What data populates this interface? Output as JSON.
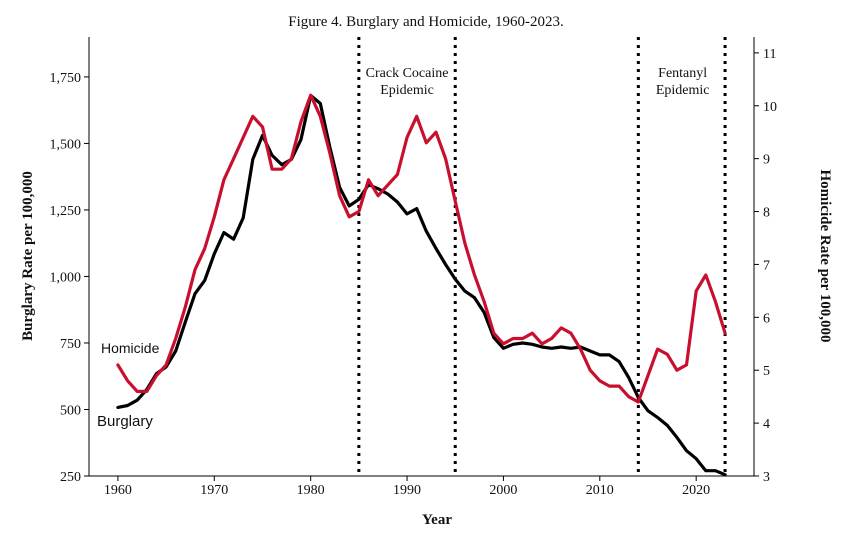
{
  "chart_data": {
    "type": "line",
    "title": "Figure 4. Burglary and Homicide, 1960-2023.",
    "xlabel": "Year",
    "ylabel_left": "Burglary Rate per 100,000",
    "ylabel_right": "Homicide Rate per 100,000",
    "xlim": [
      1957,
      2026
    ],
    "ylim_left": [
      250,
      1900
    ],
    "ylim_right": [
      3,
      11.3
    ],
    "x_ticks": [
      1960,
      1970,
      1980,
      1990,
      2000,
      2010,
      2020
    ],
    "y_ticks_left": [
      250,
      500,
      750,
      1000,
      1250,
      1500,
      1750
    ],
    "y_tick_labels_left": [
      "250",
      "500",
      "750",
      "1,000",
      "1,250",
      "1,500",
      "1,750"
    ],
    "y_ticks_right": [
      3,
      4,
      5,
      6,
      7,
      8,
      9,
      10,
      11
    ],
    "grid": false,
    "vlines": [
      1985,
      1995,
      2014,
      2023
    ],
    "annotations": [
      {
        "text": [
          "Crack Cocaine",
          "Epidemic"
        ],
        "x": 1990
      },
      {
        "text": [
          "Fentanyl",
          "Epidemic"
        ],
        "x": 2018.6
      }
    ],
    "series": [
      {
        "name": "Burglary",
        "axis": "left",
        "color": "#000000",
        "x": [
          1960,
          1961,
          1962,
          1963,
          1964,
          1965,
          1966,
          1967,
          1968,
          1969,
          1970,
          1971,
          1972,
          1973,
          1974,
          1975,
          1976,
          1977,
          1978,
          1979,
          1980,
          1981,
          1982,
          1983,
          1984,
          1985,
          1986,
          1987,
          1988,
          1989,
          1990,
          1991,
          1992,
          1993,
          1994,
          1995,
          1996,
          1997,
          1998,
          1999,
          2000,
          2001,
          2002,
          2003,
          2004,
          2005,
          2006,
          2007,
          2008,
          2009,
          2010,
          2011,
          2012,
          2013,
          2014,
          2015,
          2016,
          2017,
          2018,
          2019,
          2020,
          2021,
          2022,
          2023
        ],
        "values": [
          508,
          515,
          535,
          575,
          635,
          660,
          720,
          830,
          935,
          985,
          1085,
          1165,
          1140,
          1220,
          1440,
          1530,
          1455,
          1420,
          1440,
          1515,
          1680,
          1650,
          1485,
          1335,
          1265,
          1290,
          1345,
          1330,
          1310,
          1280,
          1235,
          1255,
          1170,
          1105,
          1045,
          990,
          945,
          920,
          865,
          770,
          730,
          745,
          750,
          745,
          735,
          730,
          735,
          730,
          735,
          720,
          705,
          705,
          680,
          620,
          545,
          495,
          470,
          440,
          395,
          345,
          315,
          270,
          270,
          255
        ]
      },
      {
        "name": "Homicide",
        "axis": "right",
        "color": "#c8102e",
        "x": [
          1960,
          1961,
          1962,
          1963,
          1964,
          1965,
          1966,
          1967,
          1968,
          1969,
          1970,
          1971,
          1972,
          1973,
          1974,
          1975,
          1976,
          1977,
          1978,
          1979,
          1980,
          1981,
          1982,
          1983,
          1984,
          1985,
          1986,
          1987,
          1988,
          1989,
          1990,
          1991,
          1992,
          1993,
          1994,
          1995,
          1996,
          1997,
          1998,
          1999,
          2000,
          2001,
          2002,
          2003,
          2004,
          2005,
          2006,
          2007,
          2008,
          2009,
          2010,
          2011,
          2012,
          2013,
          2014,
          2015,
          2016,
          2017,
          2018,
          2019,
          2020,
          2021,
          2022,
          2023
        ],
        "values": [
          5.1,
          4.8,
          4.6,
          4.6,
          4.9,
          5.1,
          5.6,
          6.2,
          6.9,
          7.3,
          7.9,
          8.6,
          9.0,
          9.4,
          9.8,
          9.6,
          8.8,
          8.8,
          9.0,
          9.7,
          10.2,
          9.8,
          9.1,
          8.3,
          7.9,
          8.0,
          8.6,
          8.3,
          8.5,
          8.7,
          9.4,
          9.8,
          9.3,
          9.5,
          9.0,
          8.2,
          7.4,
          6.8,
          6.3,
          5.7,
          5.5,
          5.6,
          5.6,
          5.7,
          5.5,
          5.6,
          5.8,
          5.7,
          5.4,
          5.0,
          4.8,
          4.7,
          4.7,
          4.5,
          4.4,
          4.9,
          5.4,
          5.3,
          5.0,
          5.1,
          6.5,
          6.8,
          6.3,
          5.7
        ]
      }
    ]
  }
}
